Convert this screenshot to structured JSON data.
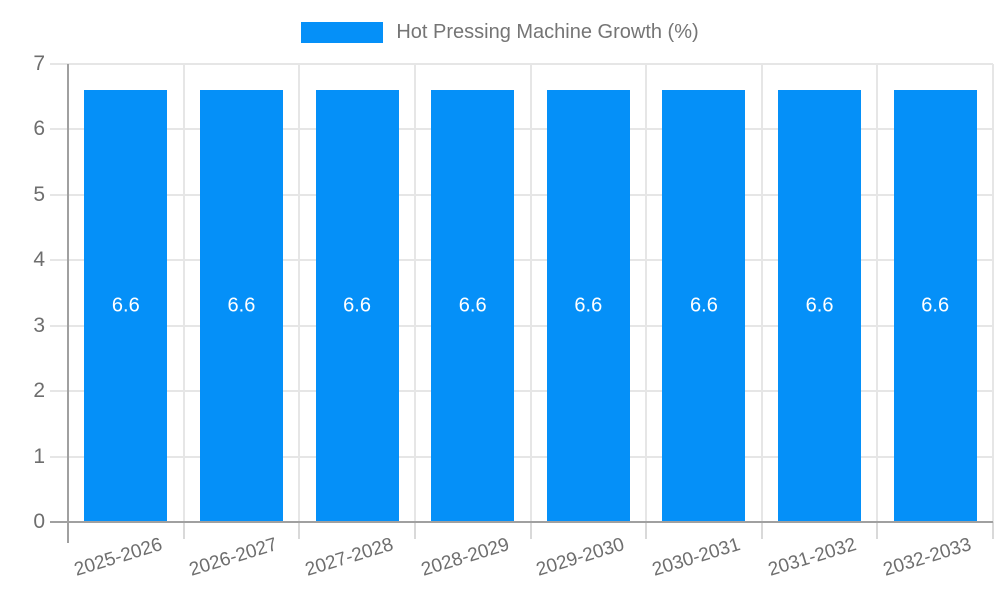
{
  "legend": {
    "label": "Hot Pressing Machine Growth (%)"
  },
  "colors": {
    "bar": "#0590f8",
    "grid": "#e6e6e6",
    "axis": "#a0a0a0",
    "category_tick": "#d9d9d9",
    "tick_text": "#6e6e6e",
    "legend_text": "#757575",
    "bar_label_text": "#ffffff"
  },
  "chart_data": {
    "type": "bar",
    "title": "Hot Pressing Machine Growth (%)",
    "categories": [
      "2025-2026",
      "2026-2027",
      "2027-2028",
      "2028-2029",
      "2029-2030",
      "2030-2031",
      "2031-2032",
      "2032-2033"
    ],
    "series": [
      {
        "name": "Hot Pressing Machine Growth (%)",
        "values": [
          6.6,
          6.6,
          6.6,
          6.6,
          6.6,
          6.6,
          6.6,
          6.6
        ],
        "labels": [
          "6.6",
          "6.6",
          "6.6",
          "6.6",
          "6.6",
          "6.6",
          "6.6",
          "6.6"
        ],
        "color": "#0590f8"
      }
    ],
    "xlabel": "",
    "ylabel": "",
    "ylim": [
      0,
      7
    ],
    "y_ticks": [
      0,
      1,
      2,
      3,
      4,
      5,
      6,
      7
    ],
    "grid": true,
    "legend_position": "top",
    "value_labels": "centered-inside-bars",
    "x_label_rotation_deg": -17
  }
}
